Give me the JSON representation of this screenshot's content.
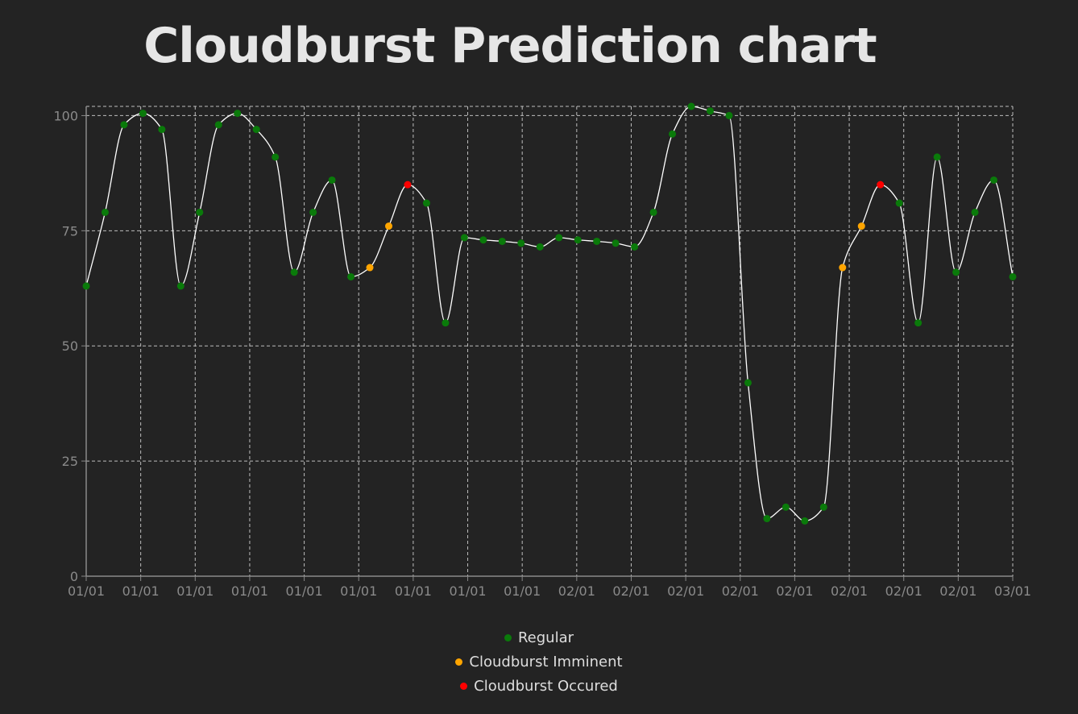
{
  "chart_data": {
    "type": "line",
    "title": "Cloudburst Prediction chart",
    "xlabel": "",
    "ylabel": "",
    "ylim": [
      0,
      102
    ],
    "yticks": [
      0,
      25,
      50,
      75,
      100
    ],
    "grid": true,
    "legend_position": "bottom",
    "x_tick_labels": [
      "01/01",
      "01/01",
      "01/01",
      "01/01",
      "01/01",
      "01/01",
      "01/01",
      "01/01",
      "01/01",
      "02/01",
      "02/01",
      "02/01",
      "02/01",
      "02/01",
      "02/01",
      "02/01",
      "02/01",
      "03/01"
    ],
    "line_color": "#ffffff",
    "categories": [
      {
        "name": "Regular",
        "color": "#0a7a0a"
      },
      {
        "name": "Cloudburst Imminent",
        "color": "#ffa500"
      },
      {
        "name": "Cloudburst Occured",
        "color": "#ff0000"
      }
    ],
    "points": [
      {
        "y": 63,
        "cat": 0
      },
      {
        "y": 79,
        "cat": 0
      },
      {
        "y": 98,
        "cat": 0
      },
      {
        "y": 100.5,
        "cat": 0
      },
      {
        "y": 97,
        "cat": 0
      },
      {
        "y": 63,
        "cat": 0
      },
      {
        "y": 79,
        "cat": 0
      },
      {
        "y": 98,
        "cat": 0
      },
      {
        "y": 100.5,
        "cat": 0
      },
      {
        "y": 97,
        "cat": 0
      },
      {
        "y": 91,
        "cat": 0
      },
      {
        "y": 66,
        "cat": 0
      },
      {
        "y": 79,
        "cat": 0
      },
      {
        "y": 86,
        "cat": 0
      },
      {
        "y": 65,
        "cat": 0
      },
      {
        "y": 67,
        "cat": 1
      },
      {
        "y": 76,
        "cat": 1
      },
      {
        "y": 85,
        "cat": 2
      },
      {
        "y": 81,
        "cat": 0
      },
      {
        "y": 55,
        "cat": 0
      },
      {
        "y": 73.5,
        "cat": 0
      },
      {
        "y": 73,
        "cat": 0
      },
      {
        "y": 72.7,
        "cat": 0
      },
      {
        "y": 72.3,
        "cat": 0
      },
      {
        "y": 71.5,
        "cat": 0
      },
      {
        "y": 73.5,
        "cat": 0
      },
      {
        "y": 73,
        "cat": 0
      },
      {
        "y": 72.7,
        "cat": 0
      },
      {
        "y": 72.3,
        "cat": 0
      },
      {
        "y": 71.5,
        "cat": 0
      },
      {
        "y": 79,
        "cat": 0
      },
      {
        "y": 96,
        "cat": 0
      },
      {
        "y": 102,
        "cat": 0
      },
      {
        "y": 101,
        "cat": 0
      },
      {
        "y": 100,
        "cat": 0
      },
      {
        "y": 42,
        "cat": 0
      },
      {
        "y": 12.5,
        "cat": 0
      },
      {
        "y": 15,
        "cat": 0
      },
      {
        "y": 12,
        "cat": 0
      },
      {
        "y": 15,
        "cat": 0
      },
      {
        "y": 67,
        "cat": 1
      },
      {
        "y": 76,
        "cat": 1
      },
      {
        "y": 85,
        "cat": 2
      },
      {
        "y": 81,
        "cat": 0
      },
      {
        "y": 55,
        "cat": 0
      },
      {
        "y": 91,
        "cat": 0
      },
      {
        "y": 66,
        "cat": 0
      },
      {
        "y": 79,
        "cat": 0
      },
      {
        "y": 86,
        "cat": 0
      },
      {
        "y": 65,
        "cat": 0
      }
    ]
  }
}
